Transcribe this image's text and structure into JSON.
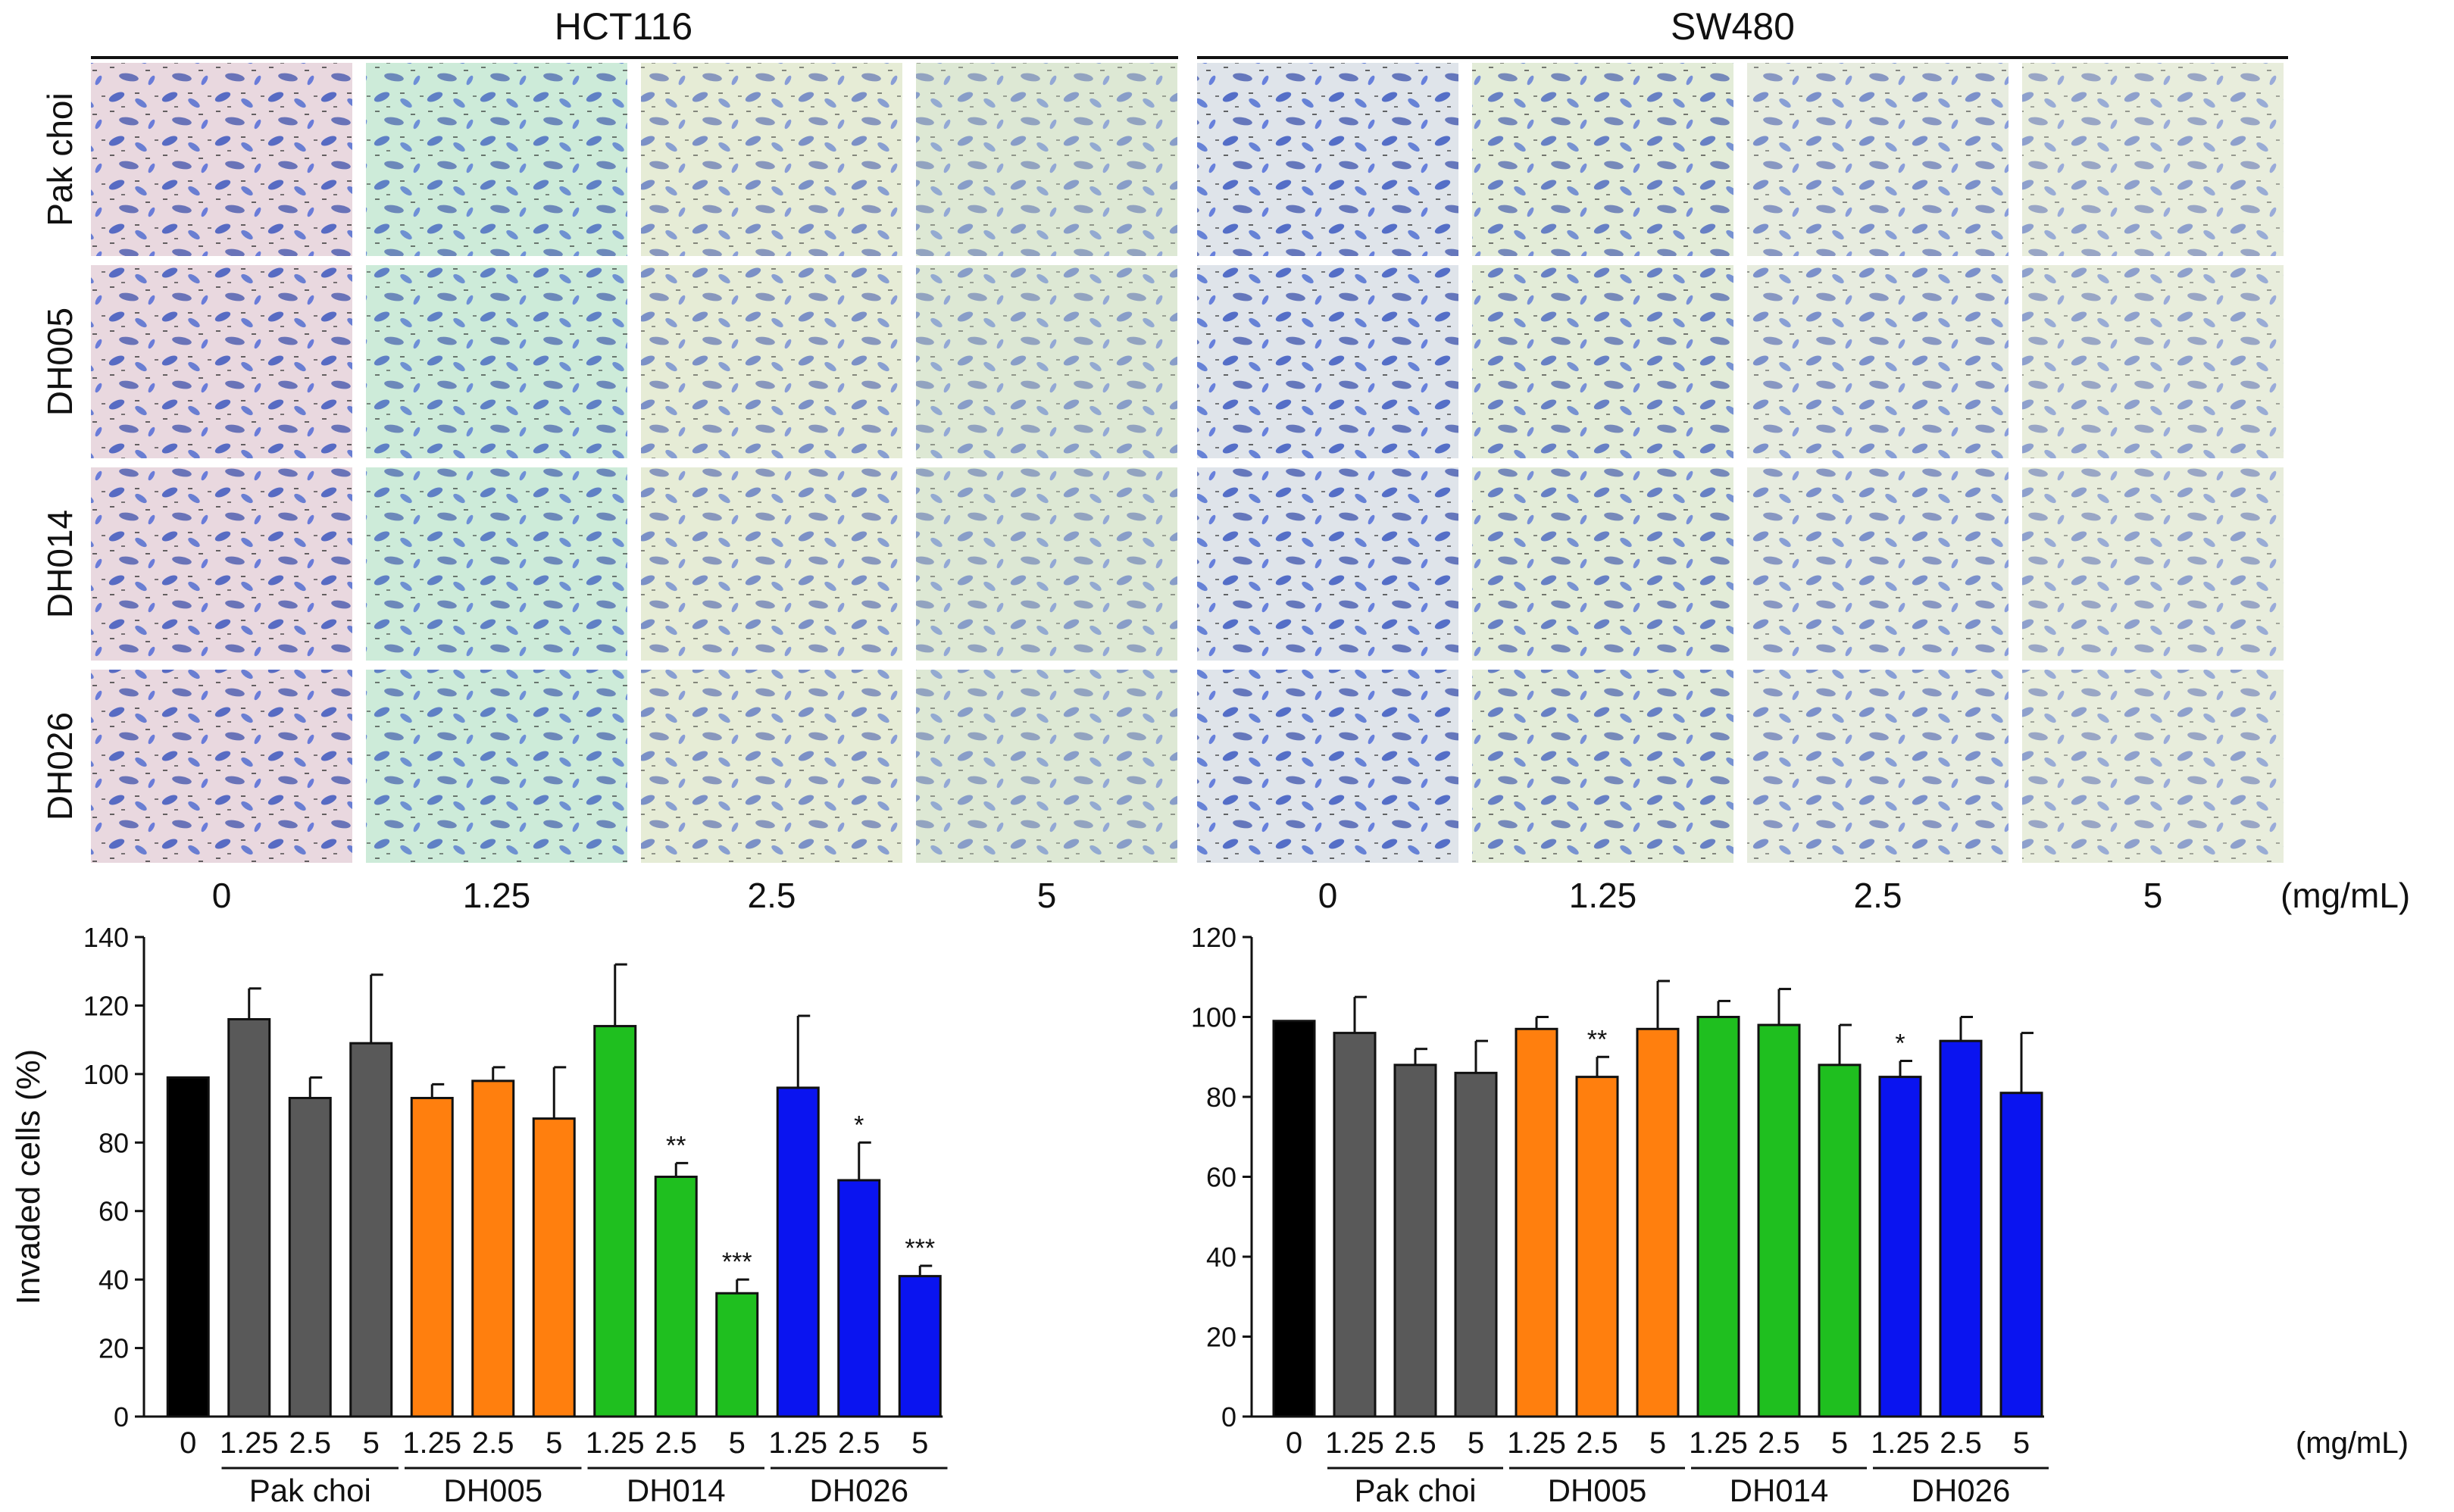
{
  "figure": {
    "panels": [
      {
        "title": "HCT116",
        "tile_tints": [
          "#e9d8df",
          "#cdebd9",
          "#e6ecd6",
          "#dde8d4"
        ]
      },
      {
        "title": "SW480",
        "tile_tints": [
          "#dfe4ea",
          "#e3ecd8",
          "#e7ecdf",
          "#e8eddc"
        ]
      }
    ],
    "row_labels": [
      "Pak choi",
      "DH005",
      "DH014",
      "DH026"
    ],
    "col_labels": [
      "0",
      "1.25",
      "2.5",
      "5"
    ],
    "unit": "(mg/mL)",
    "colors": {
      "control": "#000000",
      "Pak choi": "#595959",
      "DH005": "#ff7f0e",
      "DH014": "#1fbf1f",
      "DH026": "#0a14f0",
      "cell_stain": "#1c3fb8"
    }
  },
  "chart_data": [
    {
      "type": "bar",
      "title": "HCT116",
      "ylabel": "Invaded cells (%)",
      "ylim": [
        0,
        140
      ],
      "yticks": [
        0,
        20,
        40,
        60,
        80,
        100,
        120,
        140
      ],
      "unit": "(mg/mL)",
      "bars": [
        {
          "label": "0",
          "group": "control",
          "value": 99,
          "err": 0,
          "sig": ""
        },
        {
          "label": "1.25",
          "group": "Pak choi",
          "value": 116,
          "err": 9,
          "sig": ""
        },
        {
          "label": "2.5",
          "group": "Pak choi",
          "value": 93,
          "err": 6,
          "sig": ""
        },
        {
          "label": "5",
          "group": "Pak choi",
          "value": 109,
          "err": 20,
          "sig": ""
        },
        {
          "label": "1.25",
          "group": "DH005",
          "value": 93,
          "err": 4,
          "sig": ""
        },
        {
          "label": "2.5",
          "group": "DH005",
          "value": 98,
          "err": 4,
          "sig": ""
        },
        {
          "label": "5",
          "group": "DH005",
          "value": 87,
          "err": 15,
          "sig": ""
        },
        {
          "label": "1.25",
          "group": "DH014",
          "value": 114,
          "err": 18,
          "sig": ""
        },
        {
          "label": "2.5",
          "group": "DH014",
          "value": 70,
          "err": 4,
          "sig": "**"
        },
        {
          "label": "5",
          "group": "DH014",
          "value": 36,
          "err": 4,
          "sig": "***"
        },
        {
          "label": "1.25",
          "group": "DH026",
          "value": 96,
          "err": 21,
          "sig": ""
        },
        {
          "label": "2.5",
          "group": "DH026",
          "value": 69,
          "err": 11,
          "sig": "*"
        },
        {
          "label": "5",
          "group": "DH026",
          "value": 41,
          "err": 3,
          "sig": "***"
        }
      ],
      "groups": [
        "Pak choi",
        "DH005",
        "DH014",
        "DH026"
      ]
    },
    {
      "type": "bar",
      "title": "SW480",
      "ylabel": "",
      "ylim": [
        0,
        120
      ],
      "yticks": [
        0,
        20,
        40,
        60,
        80,
        100,
        120
      ],
      "unit": "(mg/mL)",
      "bars": [
        {
          "label": "0",
          "group": "control",
          "value": 99,
          "err": 0,
          "sig": ""
        },
        {
          "label": "1.25",
          "group": "Pak choi",
          "value": 96,
          "err": 9,
          "sig": ""
        },
        {
          "label": "2.5",
          "group": "Pak choi",
          "value": 88,
          "err": 4,
          "sig": ""
        },
        {
          "label": "5",
          "group": "Pak choi",
          "value": 86,
          "err": 8,
          "sig": ""
        },
        {
          "label": "1.25",
          "group": "DH005",
          "value": 97,
          "err": 3,
          "sig": ""
        },
        {
          "label": "2.5",
          "group": "DH005",
          "value": 85,
          "err": 5,
          "sig": "**"
        },
        {
          "label": "5",
          "group": "DH005",
          "value": 97,
          "err": 12,
          "sig": ""
        },
        {
          "label": "1.25",
          "group": "DH014",
          "value": 100,
          "err": 4,
          "sig": ""
        },
        {
          "label": "2.5",
          "group": "DH014",
          "value": 98,
          "err": 9,
          "sig": ""
        },
        {
          "label": "5",
          "group": "DH014",
          "value": 88,
          "err": 10,
          "sig": ""
        },
        {
          "label": "1.25",
          "group": "DH026",
          "value": 85,
          "err": 4,
          "sig": "*"
        },
        {
          "label": "2.5",
          "group": "DH026",
          "value": 94,
          "err": 6,
          "sig": ""
        },
        {
          "label": "5",
          "group": "DH026",
          "value": 81,
          "err": 15,
          "sig": ""
        }
      ],
      "groups": [
        "Pak choi",
        "DH005",
        "DH014",
        "DH026"
      ]
    }
  ]
}
